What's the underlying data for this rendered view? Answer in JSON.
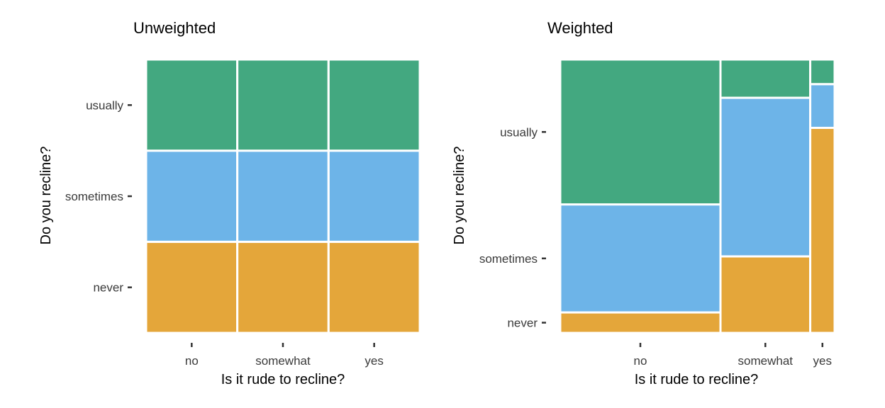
{
  "chart_data": [
    {
      "type": "mosaic",
      "title": "Unweighted",
      "xlabel": "Is it rude to recline?",
      "ylabel": "Do you recline?",
      "x_categories": [
        "no",
        "somewhat",
        "yes"
      ],
      "y_categories": [
        "never",
        "sometimes",
        "usually"
      ],
      "x_widths": [
        0.3333,
        0.3333,
        0.3334
      ],
      "y_proportions": [
        [
          0.3333,
          0.3333,
          0.3334
        ],
        [
          0.3333,
          0.3333,
          0.3334
        ],
        [
          0.3333,
          0.3333,
          0.3334
        ]
      ],
      "colors": {
        "never": "#E4A63A",
        "sometimes": "#6DB4E8",
        "usually": "#43A880"
      },
      "grid": false,
      "legend": "none"
    },
    {
      "type": "mosaic",
      "title": "Weighted",
      "xlabel": "Is it rude to recline?",
      "ylabel": "Do you recline?",
      "x_categories": [
        "no",
        "somewhat",
        "yes"
      ],
      "y_categories": [
        "never",
        "sometimes",
        "usually"
      ],
      "x_widths": [
        0.584,
        0.327,
        0.089
      ],
      "y_proportions": [
        [
          0.075,
          0.395,
          0.53
        ],
        [
          0.28,
          0.58,
          0.14
        ],
        [
          0.75,
          0.16,
          0.09
        ]
      ],
      "colors": {
        "never": "#E4A63A",
        "sometimes": "#6DB4E8",
        "usually": "#43A880"
      },
      "grid": false,
      "legend": "none"
    }
  ]
}
